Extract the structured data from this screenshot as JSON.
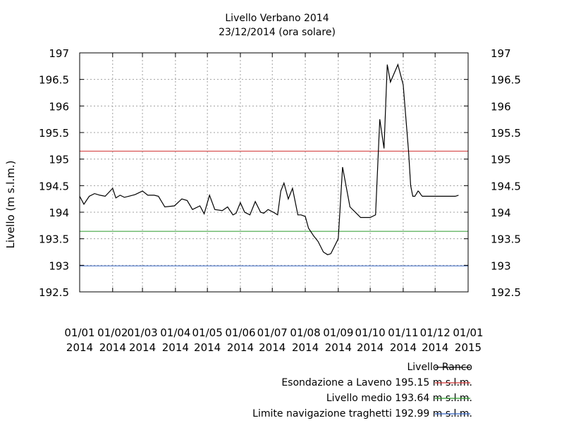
{
  "chart_data": {
    "type": "line",
    "title": "Livello Verbano 2014",
    "subtitle": "23/12/2014 (ora solare)",
    "ylabel": "Livello (m s.l.m.)",
    "xlabel": "",
    "ylim": [
      192.5,
      197
    ],
    "yticks": [
      192.5,
      193,
      193.5,
      194,
      194.5,
      195,
      195.5,
      196,
      196.5,
      197
    ],
    "ytick_labels": [
      "192.5",
      "193",
      "193.5",
      "194",
      "194.5",
      "195",
      "195.5",
      "196",
      "196.5",
      "197"
    ],
    "xtick_labels": [
      [
        "01/01",
        "2014"
      ],
      [
        "01/02",
        "2014"
      ],
      [
        "01/03",
        "2014"
      ],
      [
        "01/04",
        "2014"
      ],
      [
        "01/05",
        "2014"
      ],
      [
        "01/06",
        "2014"
      ],
      [
        "01/07",
        "2014"
      ],
      [
        "01/08",
        "2014"
      ],
      [
        "01/09",
        "2014"
      ],
      [
        "01/10",
        "2014"
      ],
      [
        "01/11",
        "2014"
      ],
      [
        "01/12",
        "2014"
      ],
      [
        "01/01",
        "2015"
      ]
    ],
    "grid": true,
    "legend_position": "bottom",
    "series": [
      {
        "name": "Livello Ranco",
        "color": "#000000",
        "x": [
          "2014-01-01",
          "2014-01-05",
          "2014-01-10",
          "2014-01-15",
          "2014-01-20",
          "2014-01-25",
          "2014-02-01",
          "2014-02-04",
          "2014-02-08",
          "2014-02-12",
          "2014-02-16",
          "2014-02-22",
          "2014-03-01",
          "2014-03-06",
          "2014-03-12",
          "2014-03-16",
          "2014-03-22",
          "2014-03-31",
          "2014-04-07",
          "2014-04-12",
          "2014-04-17",
          "2014-04-24",
          "2014-04-28",
          "2014-05-03",
          "2014-05-08",
          "2014-05-15",
          "2014-05-20",
          "2014-05-25",
          "2014-05-28",
          "2014-06-01",
          "2014-06-05",
          "2014-06-10",
          "2014-06-15",
          "2014-06-20",
          "2014-06-23",
          "2014-06-27",
          "2014-07-02",
          "2014-07-06",
          "2014-07-09",
          "2014-07-12",
          "2014-07-16",
          "2014-07-20",
          "2014-07-25",
          "2014-07-28",
          "2014-08-01",
          "2014-08-04",
          "2014-08-09",
          "2014-08-13",
          "2014-08-18",
          "2014-08-22",
          "2014-08-25",
          "2014-09-01",
          "2014-09-05",
          "2014-09-12",
          "2014-09-22",
          "2014-10-01",
          "2014-10-06",
          "2014-10-10",
          "2014-10-14",
          "2014-10-17",
          "2014-10-20",
          "2014-10-27",
          "2014-11-01",
          "2014-11-06",
          "2014-11-08",
          "2014-11-10",
          "2014-11-12",
          "2014-11-15",
          "2014-11-16",
          "2014-11-18",
          "2014-11-19",
          "2014-11-22",
          "2014-11-26",
          "2014-12-01",
          "2014-12-04",
          "2014-12-08",
          "2014-12-12",
          "2014-12-17",
          "2014-12-20",
          "2014-12-23"
        ],
        "values": [
          194.3,
          194.15,
          194.3,
          194.35,
          194.32,
          194.3,
          194.45,
          194.27,
          194.32,
          194.28,
          194.3,
          194.33,
          194.4,
          194.32,
          194.32,
          194.3,
          194.1,
          194.12,
          194.25,
          194.22,
          194.05,
          194.12,
          193.97,
          194.32,
          194.05,
          194.03,
          194.1,
          193.95,
          193.98,
          194.18,
          194.0,
          193.95,
          194.2,
          194.0,
          193.98,
          194.05,
          194.0,
          193.95,
          194.4,
          194.55,
          194.25,
          194.45,
          193.95,
          193.95,
          193.92,
          193.7,
          193.55,
          193.45,
          193.25,
          193.2,
          193.22,
          193.5,
          194.85,
          194.1,
          193.9,
          193.9,
          193.95,
          195.75,
          195.2,
          196.78,
          196.45,
          196.78,
          196.4,
          195.15,
          194.5,
          194.3,
          194.3,
          194.4,
          194.38,
          194.32,
          194.3,
          194.3,
          194.3,
          194.3,
          194.3,
          194.3,
          194.3,
          194.3,
          194.3,
          194.32
        ]
      },
      {
        "name": "Esondazione a Laveno 195.15 m s.l.m.",
        "color": "#d03030",
        "constant": 195.15
      },
      {
        "name": "Livello medio 193.64 m s.l.m.",
        "color": "#2a9a2a",
        "constant": 193.64
      },
      {
        "name": "Limite navigazione traghetti 192.99 m s.l.m.",
        "color": "#3060c0",
        "constant": 192.99
      }
    ]
  }
}
